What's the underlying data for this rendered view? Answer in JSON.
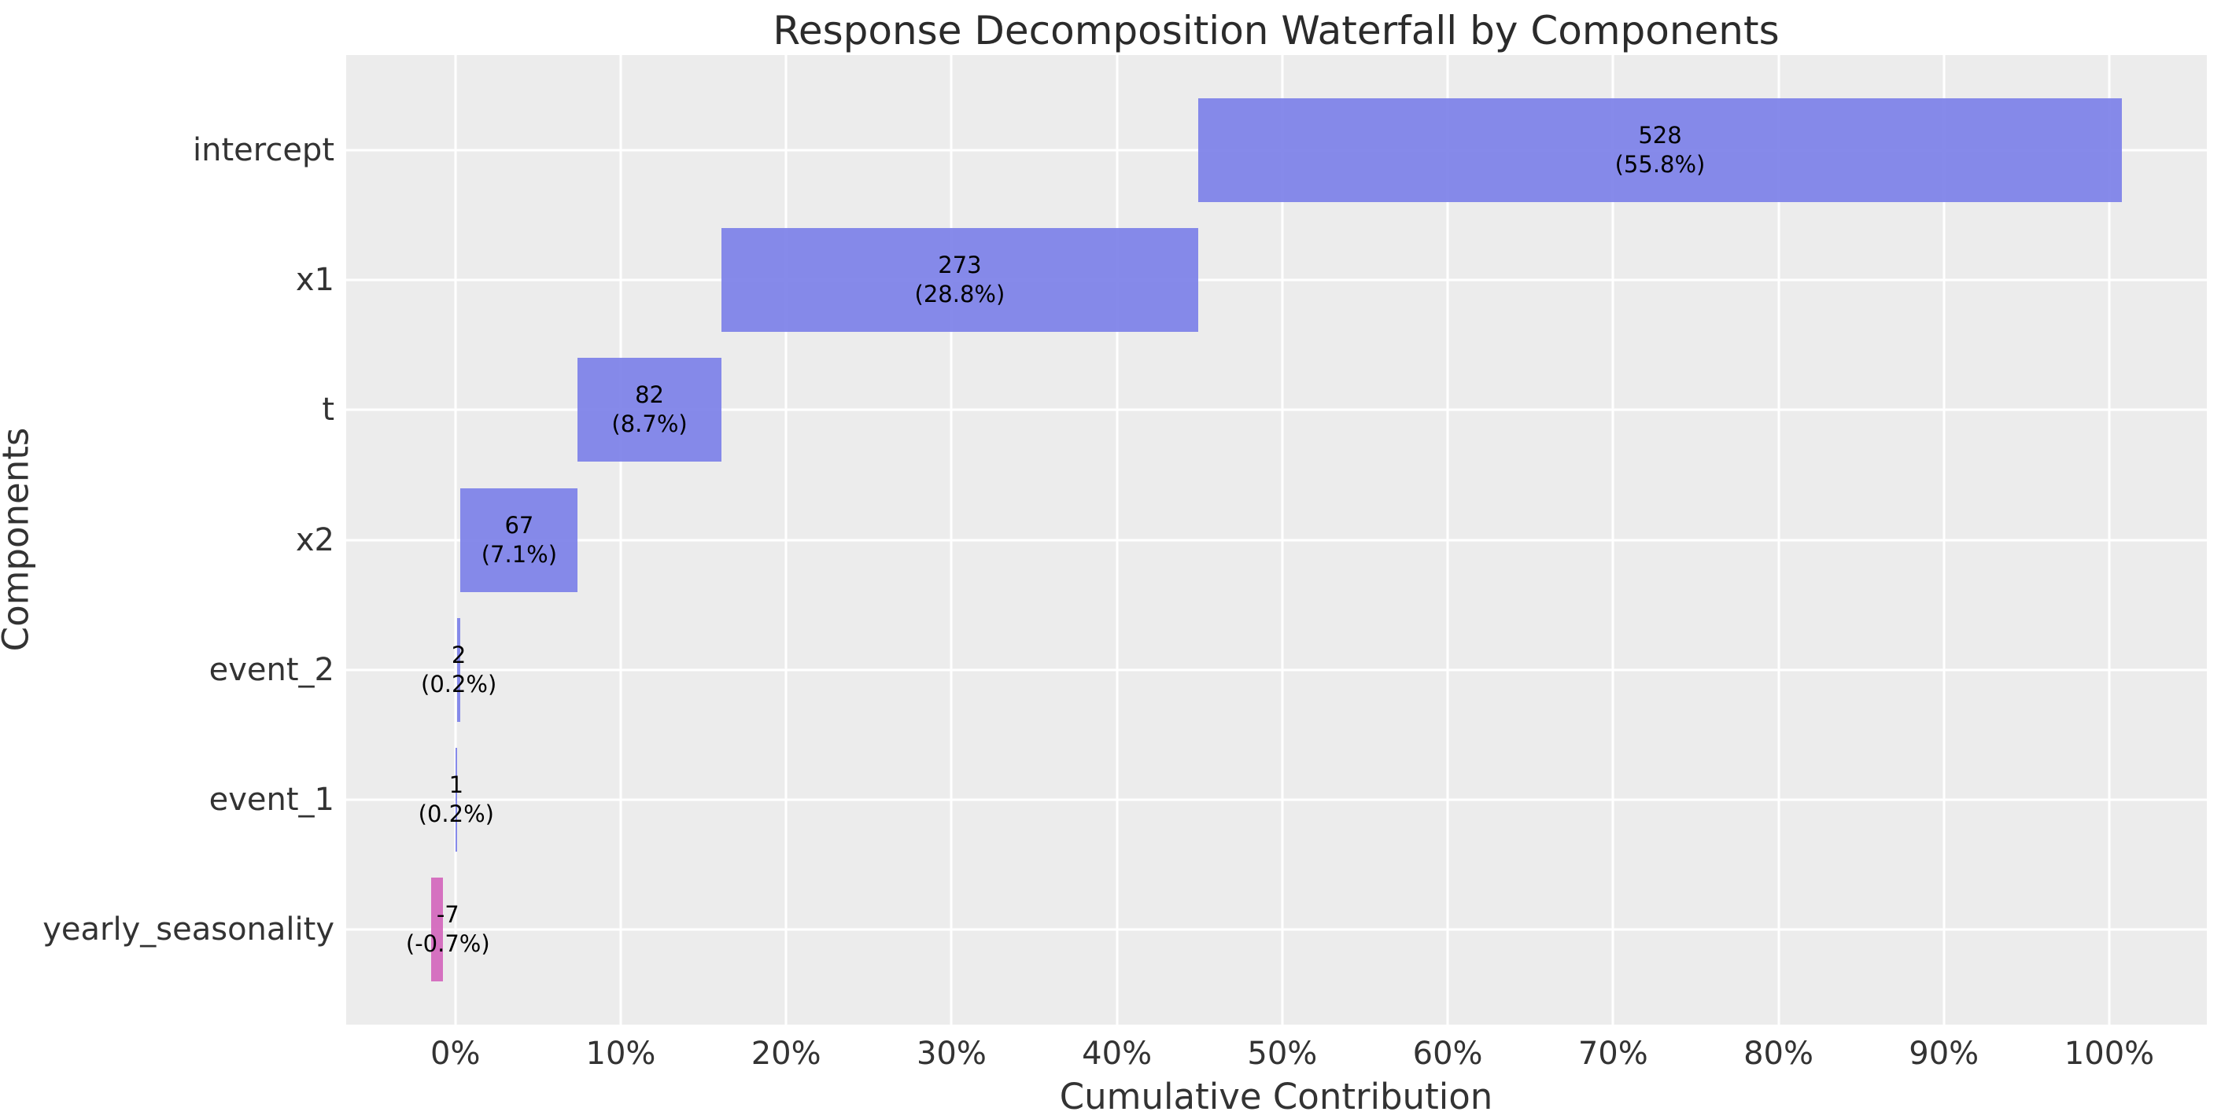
{
  "chart_data": {
    "type": "bar",
    "subtype": "horizontal-waterfall",
    "title": "Response Decomposition Waterfall by Components",
    "xlabel": "Cumulative Contribution",
    "ylabel": "Components",
    "grid": true,
    "legend": "none",
    "categories": [
      "intercept",
      "x1",
      "t",
      "x2",
      "event_2",
      "event_1",
      "yearly_seasonality"
    ],
    "values": [
      528,
      273,
      82,
      67,
      2,
      1,
      -7
    ],
    "percentages": [
      55.8,
      28.8,
      8.7,
      7.1,
      0.2,
      0.2,
      -0.7
    ],
    "bars": [
      {
        "component": "intercept",
        "value_label": "528",
        "pct_label": "(55.8%)",
        "start": 44.93,
        "end": 100.74,
        "label_x": 72.84,
        "sign": "positive"
      },
      {
        "component": "x1",
        "value_label": "273",
        "pct_label": "(28.8%)",
        "start": 16.07,
        "end": 44.93,
        "label_x": 30.5,
        "sign": "positive"
      },
      {
        "component": "t",
        "value_label": "82",
        "pct_label": "(8.7%)",
        "start": 7.4,
        "end": 16.07,
        "label_x": 11.74,
        "sign": "positive"
      },
      {
        "component": "x2",
        "value_label": "67",
        "pct_label": "(7.1%)",
        "start": 0.32,
        "end": 7.4,
        "label_x": 3.86,
        "sign": "positive"
      },
      {
        "component": "event_2",
        "value_label": "2",
        "pct_label": "(0.2%)",
        "start": 0.11,
        "end": 0.32,
        "label_x": 0.21,
        "sign": "positive"
      },
      {
        "component": "event_1",
        "value_label": "1",
        "pct_label": "(0.2%)",
        "start": 0.0,
        "end": 0.11,
        "label_x": 0.05,
        "sign": "positive"
      },
      {
        "component": "yearly_seasonality",
        "value_label": "-7",
        "pct_label": "(-0.7%)",
        "start": -1.48,
        "end": -0.74,
        "label_x": -0.45,
        "sign": "negative"
      }
    ],
    "xlim": [
      -6.6,
      105.9
    ],
    "xticks": [
      {
        "value": 0,
        "label": "0%"
      },
      {
        "value": 10,
        "label": "10%"
      },
      {
        "value": 20,
        "label": "20%"
      },
      {
        "value": 30,
        "label": "30%"
      },
      {
        "value": 40,
        "label": "40%"
      },
      {
        "value": 50,
        "label": "50%"
      },
      {
        "value": 60,
        "label": "60%"
      },
      {
        "value": 70,
        "label": "70%"
      },
      {
        "value": 80,
        "label": "80%"
      },
      {
        "value": 90,
        "label": "90%"
      },
      {
        "value": 100,
        "label": "100%"
      }
    ],
    "colors": {
      "positive_bar": "#8a8eea",
      "negative_bar": "#d678c1",
      "axes_background": "#ececec",
      "gridline": "#ffffff",
      "title_text": "#2b2b2b",
      "tick_text": "#333333",
      "bar_label_text": "#000000"
    }
  }
}
